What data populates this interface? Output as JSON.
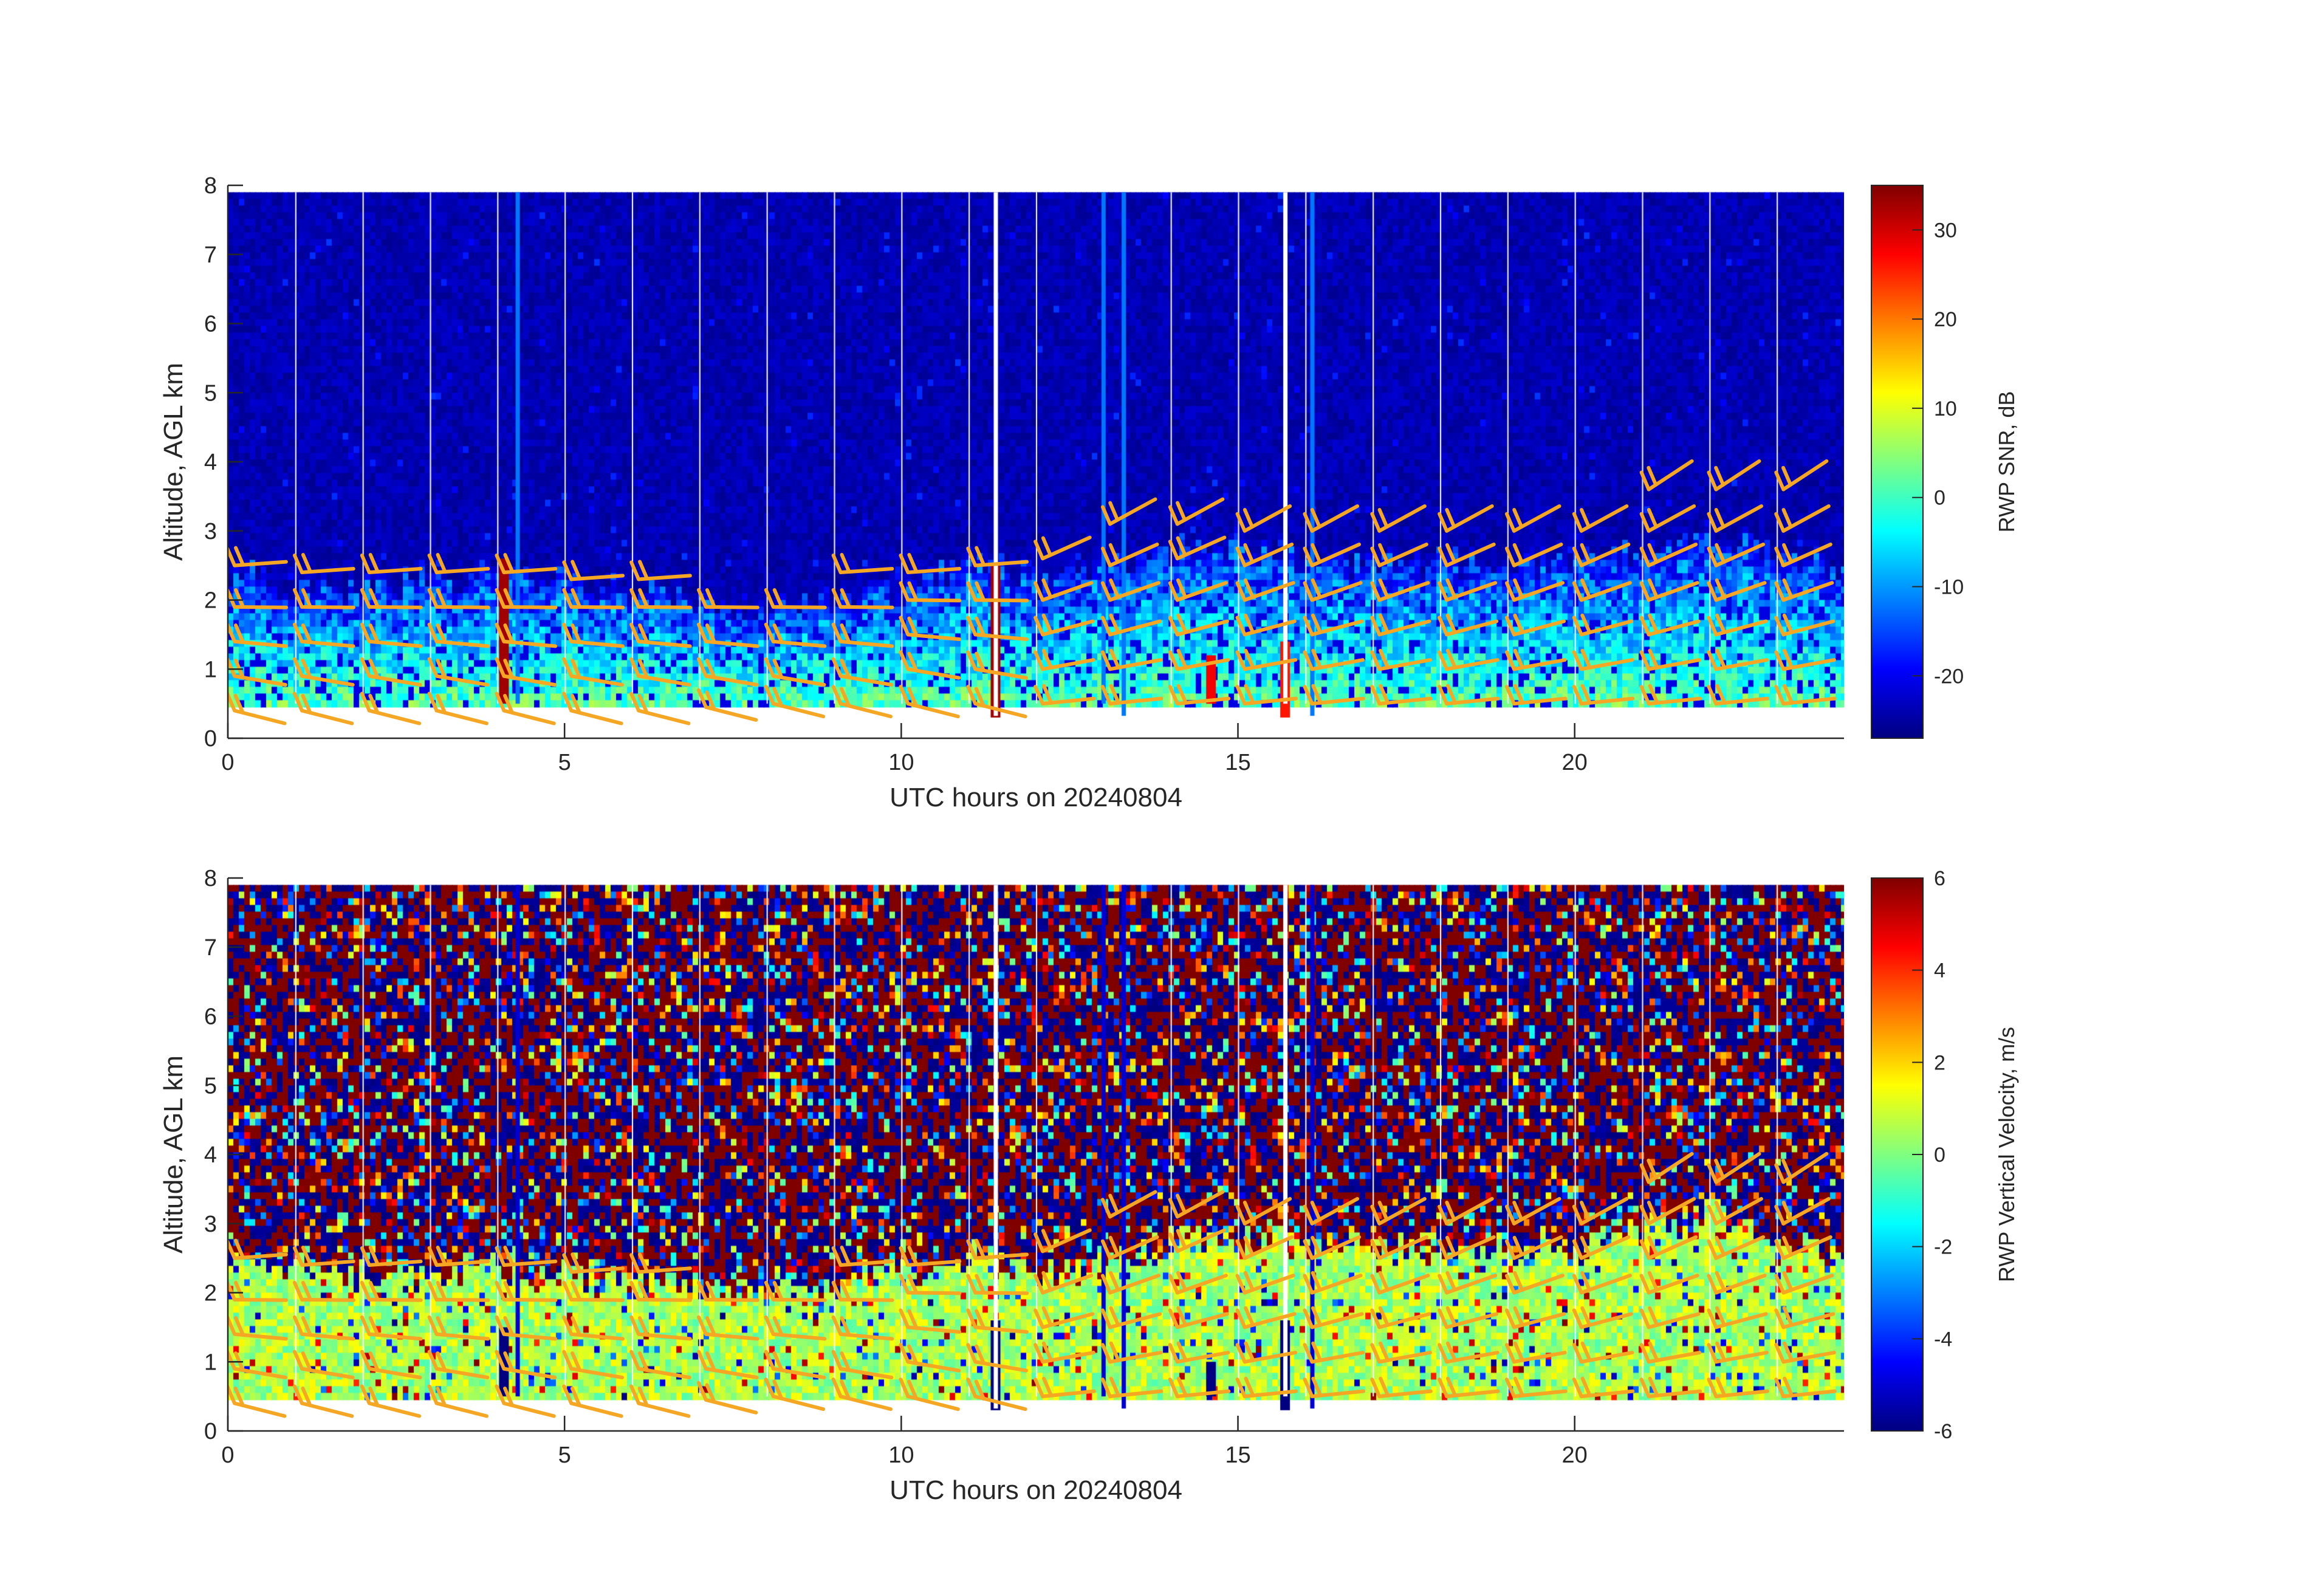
{
  "chart_data": [
    {
      "type": "heatmap",
      "title": "",
      "xlabel": "UTC hours on 20240804",
      "ylabel": "Altitude, AGL km",
      "xlim": [
        0,
        24
      ],
      "ylim": [
        0,
        8
      ],
      "xticks": [
        0,
        5,
        10,
        15,
        20
      ],
      "yticks": [
        0,
        1,
        2,
        3,
        4,
        5,
        6,
        7,
        8
      ],
      "colorbar": {
        "label": "RWP SNR, dB",
        "range": [
          -27,
          35
        ],
        "ticks": [
          -20,
          -10,
          0,
          10,
          20,
          30
        ],
        "colormap": "jet"
      },
      "field": {
        "quantity": "SNR",
        "data_extent": {
          "x": [
            0,
            24
          ],
          "z": [
            0.5,
            7.9
          ]
        },
        "background_value": -24,
        "boundary_layer_top_km": [
          [
            0,
            2.4
          ],
          [
            2,
            2.2
          ],
          [
            4,
            2.5
          ],
          [
            6,
            2.2
          ],
          [
            8,
            1.9
          ],
          [
            10,
            2.2
          ],
          [
            11,
            2.6
          ],
          [
            12,
            2.3
          ],
          [
            13,
            2.5
          ],
          [
            14,
            2.8
          ],
          [
            15,
            2.9
          ],
          [
            16,
            2.6
          ],
          [
            18,
            2.6
          ],
          [
            20,
            2.6
          ],
          [
            22,
            3.0
          ],
          [
            24,
            2.5
          ]
        ],
        "vertical_streaks": [
          {
            "x": 4.1,
            "value": 33,
            "z": [
              0.5,
              2.6
            ]
          },
          {
            "x": 11.4,
            "value": 33,
            "z": [
              0.3,
              2.5
            ]
          },
          {
            "x": 14.6,
            "value": 28,
            "z": [
              0.5,
              1.2
            ]
          },
          {
            "x": 15.7,
            "value": 26,
            "z": [
              0.3,
              1.4
            ]
          }
        ],
        "missing_columns": [
          4.3,
          11.4,
          13.0,
          13.3,
          15.7,
          16.1
        ]
      },
      "wind_barbs": {
        "color": "#f5a623",
        "columns": [
          {
            "x": 0.1,
            "z": [
              0.4,
              0.9,
              1.4,
              1.9,
              2.5
            ]
          },
          {
            "x": 1.1,
            "z": [
              0.4,
              0.9,
              1.4,
              1.9,
              2.4
            ]
          },
          {
            "x": 2.1,
            "z": [
              0.4,
              0.9,
              1.4,
              1.9,
              2.4
            ]
          },
          {
            "x": 3.1,
            "z": [
              0.4,
              0.9,
              1.4,
              1.9,
              2.4
            ]
          },
          {
            "x": 4.1,
            "z": [
              0.4,
              0.9,
              1.4,
              1.9,
              2.4
            ]
          },
          {
            "x": 5.1,
            "z": [
              0.4,
              0.9,
              1.4,
              1.9,
              2.3
            ]
          },
          {
            "x": 6.1,
            "z": [
              0.4,
              0.9,
              1.4,
              1.9,
              2.3
            ]
          },
          {
            "x": 7.1,
            "z": [
              0.45,
              0.9,
              1.4,
              1.9
            ]
          },
          {
            "x": 8.1,
            "z": [
              0.5,
              0.9,
              1.4,
              1.9
            ]
          },
          {
            "x": 9.1,
            "z": [
              0.5,
              0.9,
              1.4,
              1.9,
              2.4
            ]
          },
          {
            "x": 10.1,
            "z": [
              0.5,
              1.0,
              1.5,
              2.0,
              2.4
            ]
          },
          {
            "x": 11.1,
            "z": [
              0.5,
              1.0,
              1.5,
              2.0,
              2.5
            ]
          },
          {
            "x": 12.1,
            "z": [
              0.5,
              1.0,
              1.5,
              2.0,
              2.6
            ]
          },
          {
            "x": 13.1,
            "z": [
              0.5,
              1.0,
              1.5,
              2.0,
              2.5,
              3.1
            ]
          },
          {
            "x": 14.1,
            "z": [
              0.5,
              1.0,
              1.5,
              2.0,
              2.6,
              3.1
            ]
          },
          {
            "x": 15.1,
            "z": [
              0.5,
              1.0,
              1.5,
              2.0,
              2.5,
              3.0
            ]
          },
          {
            "x": 16.1,
            "z": [
              0.5,
              1.0,
              1.5,
              2.0,
              2.5,
              3.0
            ]
          },
          {
            "x": 17.1,
            "z": [
              0.5,
              1.0,
              1.5,
              2.0,
              2.5,
              3.0
            ]
          },
          {
            "x": 18.1,
            "z": [
              0.5,
              1.0,
              1.5,
              2.0,
              2.5,
              3.0
            ]
          },
          {
            "x": 19.1,
            "z": [
              0.5,
              1.0,
              1.5,
              2.0,
              2.5,
              3.0
            ]
          },
          {
            "x": 20.1,
            "z": [
              0.5,
              1.0,
              1.5,
              2.0,
              2.5,
              3.0
            ]
          },
          {
            "x": 21.1,
            "z": [
              0.5,
              1.0,
              1.5,
              2.0,
              2.5,
              3.0,
              3.6
            ]
          },
          {
            "x": 22.1,
            "z": [
              0.5,
              1.0,
              1.5,
              2.0,
              2.5,
              3.0,
              3.6
            ]
          },
          {
            "x": 23.1,
            "z": [
              0.5,
              1.0,
              1.5,
              2.0,
              2.5,
              3.0,
              3.6
            ]
          }
        ]
      }
    },
    {
      "type": "heatmap",
      "title": "",
      "xlabel": "UTC hours on 20240804",
      "ylabel": "Altitude, AGL km",
      "xlim": [
        0,
        24
      ],
      "ylim": [
        0,
        8
      ],
      "xticks": [
        0,
        5,
        10,
        15,
        20
      ],
      "yticks": [
        0,
        1,
        2,
        3,
        4,
        5,
        6,
        7,
        8
      ],
      "colorbar": {
        "label": "RWP Vertical Velocity, m/s",
        "range": [
          -6,
          6
        ],
        "ticks": [
          -6,
          -4,
          -2,
          0,
          2,
          4,
          6
        ],
        "colormap": "jet"
      },
      "field": {
        "quantity": "vertical velocity",
        "data_extent": {
          "x": [
            0,
            24
          ],
          "z": [
            0.5,
            7.9
          ]
        },
        "above_layer": "noise, values spanning -6 to 6",
        "in_layer_value": 0.5,
        "boundary_layer_top_km": [
          [
            0,
            2.6
          ],
          [
            2,
            2.3
          ],
          [
            4,
            2.4
          ],
          [
            6,
            2.2
          ],
          [
            8,
            2.0
          ],
          [
            10,
            2.3
          ],
          [
            11,
            2.6
          ],
          [
            12,
            2.3
          ],
          [
            13,
            2.5
          ],
          [
            14,
            2.8
          ],
          [
            15,
            2.9
          ],
          [
            16,
            2.8
          ],
          [
            18,
            2.6
          ],
          [
            20,
            2.7
          ],
          [
            22,
            3.2
          ],
          [
            24,
            2.5
          ]
        ],
        "vertical_streaks": [
          {
            "x": 4.1,
            "value": -6,
            "z": [
              0.5,
              1.5
            ]
          },
          {
            "x": 11.4,
            "value": -6,
            "z": [
              0.3,
              1.6
            ]
          },
          {
            "x": 14.6,
            "value": -6,
            "z": [
              0.5,
              1.0
            ]
          },
          {
            "x": 15.7,
            "value": -6,
            "z": [
              0.3,
              1.6
            ]
          }
        ],
        "missing_columns": [
          4.3,
          11.4,
          13.0,
          13.3,
          15.7,
          16.1
        ]
      },
      "wind_barbs": {
        "color": "#f5a623",
        "columns": [
          {
            "x": 0.1,
            "z": [
              0.4,
              0.9,
              1.4,
              1.9,
              2.5
            ]
          },
          {
            "x": 1.1,
            "z": [
              0.4,
              0.9,
              1.4,
              1.9,
              2.4
            ]
          },
          {
            "x": 2.1,
            "z": [
              0.4,
              0.9,
              1.4,
              1.9,
              2.4
            ]
          },
          {
            "x": 3.1,
            "z": [
              0.4,
              0.9,
              1.4,
              1.9,
              2.4
            ]
          },
          {
            "x": 4.1,
            "z": [
              0.4,
              0.9,
              1.4,
              1.9,
              2.4
            ]
          },
          {
            "x": 5.1,
            "z": [
              0.4,
              0.9,
              1.4,
              1.9,
              2.3
            ]
          },
          {
            "x": 6.1,
            "z": [
              0.4,
              0.9,
              1.4,
              1.9,
              2.3
            ]
          },
          {
            "x": 7.1,
            "z": [
              0.45,
              0.9,
              1.4,
              1.9
            ]
          },
          {
            "x": 8.1,
            "z": [
              0.5,
              0.9,
              1.4,
              1.9
            ]
          },
          {
            "x": 9.1,
            "z": [
              0.5,
              0.9,
              1.4,
              1.9,
              2.4
            ]
          },
          {
            "x": 10.1,
            "z": [
              0.5,
              1.0,
              1.5,
              2.0,
              2.4
            ]
          },
          {
            "x": 11.1,
            "z": [
              0.5,
              1.0,
              1.5,
              2.0,
              2.5
            ]
          },
          {
            "x": 12.1,
            "z": [
              0.5,
              1.0,
              1.5,
              2.0,
              2.6
            ]
          },
          {
            "x": 13.1,
            "z": [
              0.5,
              1.0,
              1.5,
              2.0,
              2.5,
              3.1
            ]
          },
          {
            "x": 14.1,
            "z": [
              0.5,
              1.0,
              1.5,
              2.0,
              2.6,
              3.1
            ]
          },
          {
            "x": 15.1,
            "z": [
              0.5,
              1.0,
              1.5,
              2.0,
              2.5,
              3.0
            ]
          },
          {
            "x": 16.1,
            "z": [
              0.5,
              1.0,
              1.5,
              2.0,
              2.5,
              3.0
            ]
          },
          {
            "x": 17.1,
            "z": [
              0.5,
              1.0,
              1.5,
              2.0,
              2.5,
              3.0
            ]
          },
          {
            "x": 18.1,
            "z": [
              0.5,
              1.0,
              1.5,
              2.0,
              2.5,
              3.0
            ]
          },
          {
            "x": 19.1,
            "z": [
              0.5,
              1.0,
              1.5,
              2.0,
              2.5,
              3.0
            ]
          },
          {
            "x": 20.1,
            "z": [
              0.5,
              1.0,
              1.5,
              2.0,
              2.5,
              3.0
            ]
          },
          {
            "x": 21.1,
            "z": [
              0.5,
              1.0,
              1.5,
              2.0,
              2.5,
              3.0,
              3.6
            ]
          },
          {
            "x": 22.1,
            "z": [
              0.5,
              1.0,
              1.5,
              2.0,
              2.5,
              3.0,
              3.6
            ]
          },
          {
            "x": 23.1,
            "z": [
              0.5,
              1.0,
              1.5,
              2.0,
              2.5,
              3.0,
              3.6
            ]
          }
        ]
      }
    }
  ]
}
